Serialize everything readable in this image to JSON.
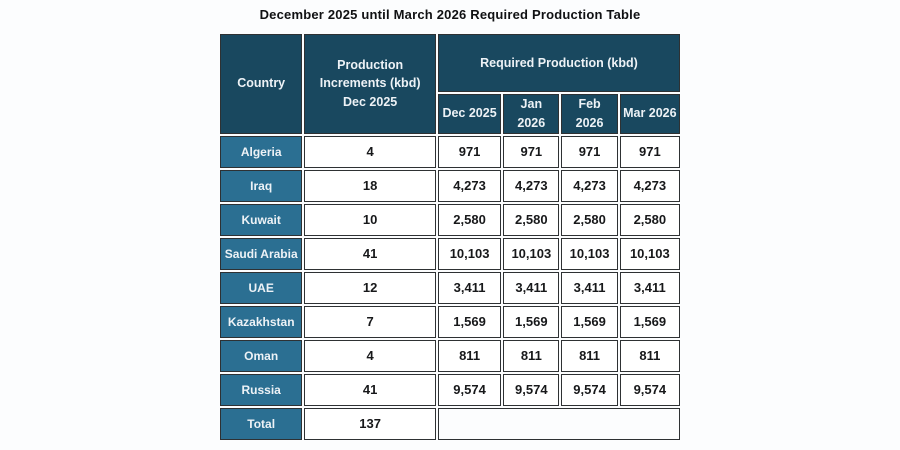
{
  "page": {
    "title": "December 2025 until March 2026 Required Production Table"
  },
  "colors": {
    "page_bg": "#fcfdfe",
    "header_bg": "#19485f",
    "country_bg": "#2b6f92",
    "border": "#2e3133",
    "header_text": "#edf2f6",
    "body_text": "#17181a"
  },
  "table": {
    "header": {
      "country_label": "Country",
      "increments_label_line1": "Production Increments (kbd)",
      "increments_label_line2": "Dec 2025",
      "required_label": "Required Production (kbd)",
      "month_columns": [
        "Dec 2025",
        "Jan 2026",
        "Feb 2026",
        "Mar 2026"
      ]
    },
    "rows": [
      {
        "country": "Algeria",
        "increment": "4",
        "required": [
          "971",
          "971",
          "971",
          "971"
        ]
      },
      {
        "country": "Iraq",
        "increment": "18",
        "required": [
          "4,273",
          "4,273",
          "4,273",
          "4,273"
        ]
      },
      {
        "country": "Kuwait",
        "increment": "10",
        "required": [
          "2,580",
          "2,580",
          "2,580",
          "2,580"
        ]
      },
      {
        "country": "Saudi Arabia",
        "increment": "41",
        "required": [
          "10,103",
          "10,103",
          "10,103",
          "10,103"
        ]
      },
      {
        "country": "UAE",
        "increment": "12",
        "required": [
          "3,411",
          "3,411",
          "3,411",
          "3,411"
        ]
      },
      {
        "country": "Kazakhstan",
        "increment": "7",
        "required": [
          "1,569",
          "1,569",
          "1,569",
          "1,569"
        ]
      },
      {
        "country": "Oman",
        "increment": "4",
        "required": [
          "811",
          "811",
          "811",
          "811"
        ]
      },
      {
        "country": "Russia",
        "increment": "41",
        "required": [
          "9,574",
          "9,574",
          "9,574",
          "9,574"
        ]
      }
    ],
    "total": {
      "label": "Total",
      "value": "137"
    }
  },
  "chart_data": {
    "type": "table",
    "title": "December 2025 until March 2026 Required Production Table",
    "columns": [
      "Country",
      "Production Increments (kbd) Dec 2025",
      "Required Production (kbd) Dec 2025",
      "Required Production (kbd) Jan 2026",
      "Required Production (kbd) Feb 2026",
      "Required Production (kbd) Mar 2026"
    ],
    "rows": [
      [
        "Algeria",
        4,
        971,
        971,
        971,
        971
      ],
      [
        "Iraq",
        18,
        4273,
        4273,
        4273,
        4273
      ],
      [
        "Kuwait",
        10,
        2580,
        2580,
        2580,
        2580
      ],
      [
        "Saudi Arabia",
        41,
        10103,
        10103,
        10103,
        10103
      ],
      [
        "UAE",
        12,
        3411,
        3411,
        3411,
        3411
      ],
      [
        "Kazakhstan",
        7,
        1569,
        1569,
        1569,
        1569
      ],
      [
        "Oman",
        4,
        811,
        811,
        811,
        811
      ],
      [
        "Russia",
        41,
        9574,
        9574,
        9574,
        9574
      ]
    ],
    "total_row": [
      "Total",
      137
    ]
  }
}
